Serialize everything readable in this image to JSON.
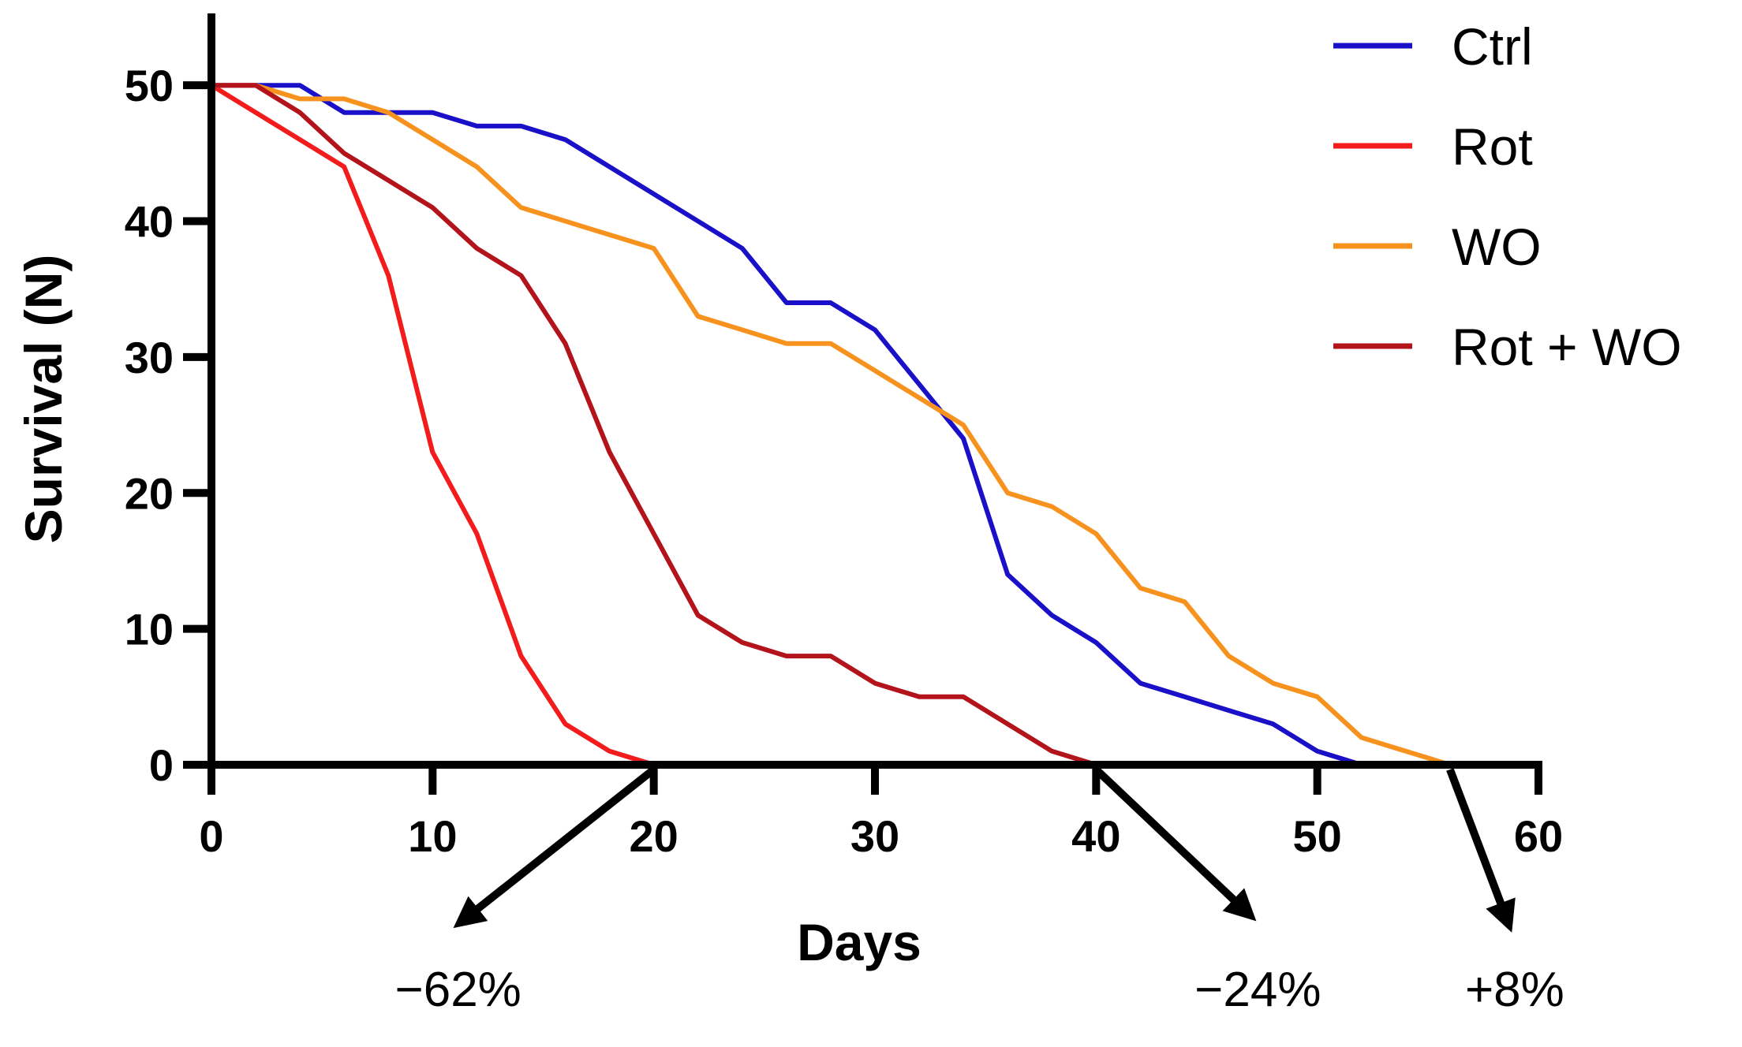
{
  "chart_data": {
    "type": "line",
    "title": "",
    "xlabel": "Days",
    "ylabel": "Survival (N)",
    "xlim": [
      0,
      60
    ],
    "ylim": [
      0,
      55
    ],
    "xticks": [
      0,
      10,
      20,
      30,
      40,
      50,
      60
    ],
    "yticks": [
      0,
      10,
      20,
      30,
      40,
      50
    ],
    "grid": false,
    "legend_position": "top-right",
    "series": [
      {
        "name": "Ctrl",
        "color": "#1a10c8",
        "x": [
          0,
          2,
          4,
          6,
          8,
          10,
          12,
          14,
          16,
          18,
          20,
          22,
          24,
          26,
          28,
          30,
          32,
          34,
          36,
          38,
          40,
          42,
          44,
          46,
          48,
          50,
          52,
          54,
          56,
          58,
          60
        ],
        "y": [
          50,
          50,
          50,
          48,
          48,
          48,
          47,
          47,
          46,
          44,
          42,
          40,
          38,
          34,
          34,
          32,
          28,
          24,
          14,
          11,
          9,
          6,
          5,
          4,
          3,
          1,
          0,
          0,
          0,
          0,
          0
        ]
      },
      {
        "name": "Rot",
        "color": "#f21c1c",
        "x": [
          0,
          2,
          4,
          6,
          8,
          10,
          12,
          14,
          16,
          18,
          20,
          22,
          24,
          26,
          28,
          30,
          32,
          34,
          36,
          38,
          40,
          42,
          44,
          46,
          48,
          50,
          52
        ],
        "y": [
          50,
          48,
          46,
          44,
          36,
          23,
          17,
          8,
          3,
          1,
          0,
          0,
          0,
          0,
          0,
          0,
          0,
          0,
          0,
          0,
          0,
          0,
          0,
          0,
          0,
          0,
          0
        ]
      },
      {
        "name": "WO",
        "color": "#f7921e",
        "x": [
          0,
          2,
          4,
          6,
          8,
          10,
          12,
          14,
          16,
          18,
          20,
          22,
          24,
          26,
          28,
          30,
          32,
          34,
          36,
          38,
          40,
          42,
          44,
          46,
          48,
          50,
          52,
          54,
          56
        ],
        "y": [
          50,
          50,
          49,
          49,
          48,
          46,
          44,
          41,
          40,
          39,
          38,
          33,
          32,
          31,
          31,
          29,
          27,
          25,
          20,
          19,
          17,
          13,
          12,
          8,
          6,
          5,
          2,
          1,
          0
        ]
      },
      {
        "name": "Rot + WO",
        "color": "#b3141c",
        "x": [
          0,
          2,
          4,
          6,
          8,
          10,
          12,
          14,
          16,
          18,
          20,
          22,
          24,
          26,
          28,
          30,
          32,
          34,
          36,
          38,
          40
        ],
        "y": [
          50,
          50,
          48,
          45,
          43,
          41,
          38,
          36,
          31,
          23,
          17,
          11,
          9,
          8,
          8,
          6,
          5,
          5,
          3,
          1,
          0
        ]
      }
    ],
    "annotations": [
      {
        "text": "−62%",
        "at_day": 20,
        "arrow": "down-left"
      },
      {
        "text": "−24%",
        "at_day": 40,
        "arrow": "down-right"
      },
      {
        "text": "+8%",
        "at_day": 56,
        "arrow": "down"
      }
    ]
  }
}
